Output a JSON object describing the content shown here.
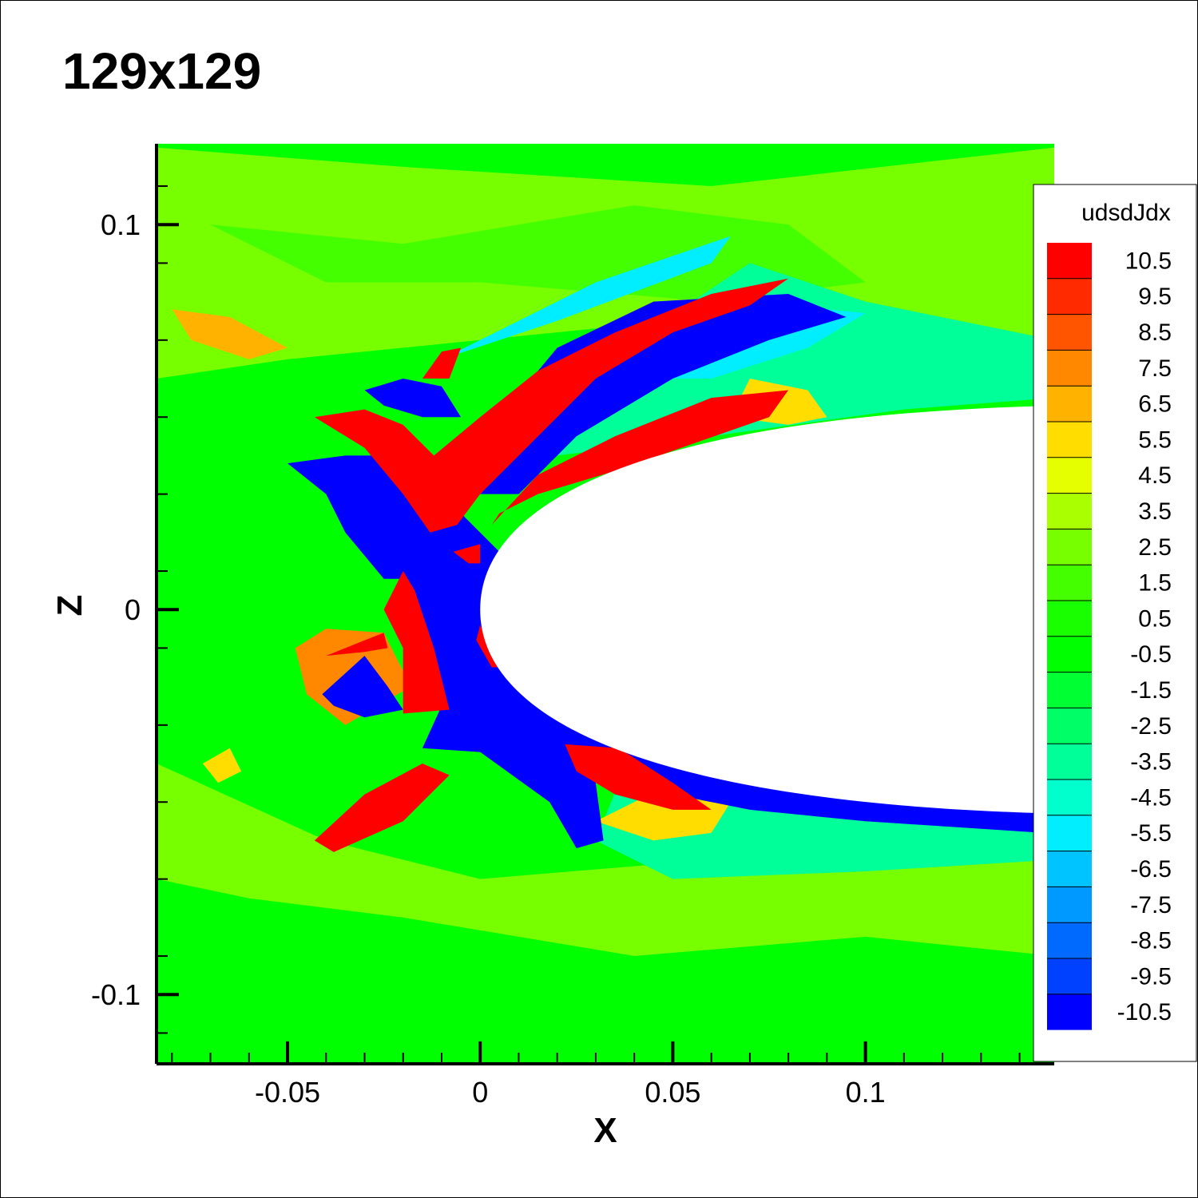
{
  "title": "129x129",
  "colors": {
    "background_field": "#00ff00",
    "body": "#ffffff",
    "axis": "#000000"
  },
  "chart_data": {
    "type": "heatmap",
    "title": "129x129",
    "xlabel": "X",
    "ylabel": "Z",
    "xlim": [
      -0.084,
      0.149
    ],
    "ylim": [
      -0.118,
      0.121
    ],
    "x_ticks": [
      {
        "value": -0.05,
        "label": "-0.05"
      },
      {
        "value": 0,
        "label": "0"
      },
      {
        "value": 0.05,
        "label": "0.05"
      },
      {
        "value": 0.1,
        "label": "0.1"
      }
    ],
    "y_ticks": [
      {
        "value": 0.1,
        "label": "0.1"
      },
      {
        "value": 0,
        "label": "0"
      },
      {
        "value": -0.1,
        "label": "-0.1"
      }
    ],
    "legend": {
      "title": "udsdJdx",
      "placement": "right",
      "levels": [
        {
          "label": "10.5",
          "color": "#ff0000"
        },
        {
          "label": "9.5",
          "color": "#ff2a00"
        },
        {
          "label": "8.5",
          "color": "#ff5500"
        },
        {
          "label": "7.5",
          "color": "#ff8800"
        },
        {
          "label": "6.5",
          "color": "#ffb300"
        },
        {
          "label": "5.5",
          "color": "#ffdd00"
        },
        {
          "label": "4.5",
          "color": "#e6ff00"
        },
        {
          "label": "3.5",
          "color": "#aaff00"
        },
        {
          "label": "2.5",
          "color": "#77ff00"
        },
        {
          "label": "1.5",
          "color": "#44ff00"
        },
        {
          "label": "0.5",
          "color": "#1aff00"
        },
        {
          "label": "-0.5",
          "color": "#00ff00"
        },
        {
          "label": "-1.5",
          "color": "#00ff33"
        },
        {
          "label": "-2.5",
          "color": "#00ff66"
        },
        {
          "label": "-3.5",
          "color": "#00ff99"
        },
        {
          "label": "-4.5",
          "color": "#00ffcc"
        },
        {
          "label": "-5.5",
          "color": "#00eeff"
        },
        {
          "label": "-6.5",
          "color": "#00c4ff"
        },
        {
          "label": "-7.5",
          "color": "#0099ff"
        },
        {
          "label": "-8.5",
          "color": "#006aff"
        },
        {
          "label": "-9.5",
          "color": "#0040ff"
        },
        {
          "label": "-10.5",
          "color": "#0000ff"
        }
      ]
    },
    "regions": [
      {
        "name": "upper-green-band",
        "value": 2.5,
        "points": [
          [
            -0.084,
            0.12
          ],
          [
            -0.02,
            0.115
          ],
          [
            0.06,
            0.11
          ],
          [
            0.149,
            0.12
          ],
          [
            0.149,
            0.065
          ],
          [
            0.1,
            0.07
          ],
          [
            0.05,
            0.075
          ],
          [
            0,
            0.07
          ],
          [
            -0.05,
            0.065
          ],
          [
            -0.084,
            0.06
          ]
        ]
      },
      {
        "name": "upper-light-green",
        "value": 1.5,
        "points": [
          [
            -0.07,
            0.1
          ],
          [
            -0.02,
            0.095
          ],
          [
            0.04,
            0.105
          ],
          [
            0.08,
            0.1
          ],
          [
            0.1,
            0.085
          ],
          [
            0.06,
            0.08
          ],
          [
            0.0,
            0.085
          ],
          [
            -0.04,
            0.085
          ]
        ]
      },
      {
        "name": "lower-light-green",
        "value": 2.5,
        "points": [
          [
            -0.084,
            -0.04
          ],
          [
            -0.04,
            -0.06
          ],
          [
            0.0,
            -0.07
          ],
          [
            0.06,
            -0.065
          ],
          [
            0.1,
            -0.055
          ],
          [
            0.149,
            -0.055
          ],
          [
            0.149,
            -0.09
          ],
          [
            0.1,
            -0.085
          ],
          [
            0.04,
            -0.09
          ],
          [
            -0.02,
            -0.08
          ],
          [
            -0.06,
            -0.075
          ],
          [
            -0.084,
            -0.07
          ]
        ]
      },
      {
        "name": "right-teal-band-upper",
        "value": -3.5,
        "points": [
          [
            0.07,
            0.09
          ],
          [
            0.1,
            0.08
          ],
          [
            0.149,
            0.07
          ],
          [
            0.149,
            0.055
          ],
          [
            0.11,
            0.052
          ],
          [
            0.06,
            0.045
          ],
          [
            0.02,
            0.04
          ],
          [
            0.04,
            0.07
          ]
        ]
      },
      {
        "name": "right-teal-band-lower",
        "value": -3.5,
        "points": [
          [
            0.04,
            -0.035
          ],
          [
            0.08,
            -0.045
          ],
          [
            0.149,
            -0.052
          ],
          [
            0.149,
            -0.065
          ],
          [
            0.1,
            -0.068
          ],
          [
            0.05,
            -0.07
          ],
          [
            0.03,
            -0.06
          ]
        ]
      },
      {
        "name": "upper-cyan-streak",
        "value": -5.5,
        "points": [
          [
            -0.01,
            0.065
          ],
          [
            0.03,
            0.085
          ],
          [
            0.065,
            0.097
          ],
          [
            0.06,
            0.09
          ],
          [
            0.02,
            0.075
          ]
        ]
      },
      {
        "name": "upper-right-cyan",
        "value": -5.5,
        "points": [
          [
            0.04,
            0.075
          ],
          [
            0.07,
            0.08
          ],
          [
            0.1,
            0.077
          ],
          [
            0.085,
            0.068
          ],
          [
            0.06,
            0.06
          ],
          [
            0.04,
            0.06
          ]
        ]
      },
      {
        "name": "left-yellow-upper",
        "value": 6.5,
        "points": [
          [
            -0.08,
            0.078
          ],
          [
            -0.065,
            0.076
          ],
          [
            -0.05,
            0.068
          ],
          [
            -0.06,
            0.065
          ],
          [
            -0.075,
            0.07
          ]
        ]
      },
      {
        "name": "left-orange-mid",
        "value": 7.5,
        "points": [
          [
            -0.048,
            -0.01
          ],
          [
            -0.04,
            -0.005
          ],
          [
            -0.025,
            -0.006
          ],
          [
            -0.018,
            -0.02
          ],
          [
            -0.035,
            -0.03
          ],
          [
            -0.045,
            -0.022
          ]
        ]
      },
      {
        "name": "lower-yellow-mid",
        "value": 5.5,
        "points": [
          [
            0.03,
            -0.055
          ],
          [
            0.045,
            -0.06
          ],
          [
            0.06,
            -0.058
          ],
          [
            0.065,
            -0.05
          ],
          [
            0.05,
            -0.045
          ]
        ]
      },
      {
        "name": "lower-left-yellow",
        "value": 5.5,
        "points": [
          [
            -0.072,
            -0.04
          ],
          [
            -0.065,
            -0.036
          ],
          [
            -0.062,
            -0.042
          ],
          [
            -0.068,
            -0.045
          ]
        ]
      },
      {
        "name": "upper-right-yellow",
        "value": 5.5,
        "points": [
          [
            0.07,
            0.06
          ],
          [
            0.085,
            0.057
          ],
          [
            0.09,
            0.05
          ],
          [
            0.08,
            0.048
          ],
          [
            0.065,
            0.05
          ]
        ]
      },
      {
        "name": "blue-arm-upper",
        "value": -10.5,
        "points": [
          [
            0.005,
            0.05
          ],
          [
            0.02,
            0.068
          ],
          [
            0.045,
            0.08
          ],
          [
            0.08,
            0.082
          ],
          [
            0.095,
            0.076
          ],
          [
            0.075,
            0.07
          ],
          [
            0.05,
            0.06
          ],
          [
            0.025,
            0.045
          ],
          [
            0.01,
            0.03
          ],
          [
            0.0,
            0.03
          ]
        ]
      },
      {
        "name": "blue-core",
        "value": -10.5,
        "points": [
          [
            -0.05,
            0.038
          ],
          [
            -0.035,
            0.04
          ],
          [
            -0.02,
            0.04
          ],
          [
            -0.01,
            0.03
          ],
          [
            0.0,
            0.02
          ],
          [
            0.005,
            0.015
          ],
          [
            0.0,
            0.0
          ],
          [
            0.006,
            -0.01
          ],
          [
            0.02,
            -0.022
          ],
          [
            0.04,
            -0.03
          ],
          [
            0.07,
            -0.04
          ],
          [
            0.1,
            -0.048
          ],
          [
            0.146,
            -0.053
          ],
          [
            0.146,
            -0.058
          ],
          [
            0.1,
            -0.055
          ],
          [
            0.07,
            -0.052
          ],
          [
            0.05,
            -0.048
          ],
          [
            0.036,
            -0.04
          ],
          [
            0.03,
            -0.045
          ],
          [
            0.032,
            -0.06
          ],
          [
            0.025,
            -0.062
          ],
          [
            0.018,
            -0.05
          ],
          [
            0.0,
            -0.037
          ],
          [
            -0.015,
            -0.036
          ],
          [
            -0.01,
            -0.025
          ],
          [
            -0.017,
            -0.01
          ],
          [
            -0.02,
            0.008
          ],
          [
            -0.025,
            0.008
          ],
          [
            -0.035,
            0.02
          ],
          [
            -0.04,
            0.03
          ]
        ]
      },
      {
        "name": "blue-left-pocket",
        "value": -10.5,
        "points": [
          [
            -0.041,
            -0.022
          ],
          [
            -0.03,
            -0.012
          ],
          [
            -0.024,
            -0.02
          ],
          [
            -0.02,
            -0.026
          ],
          [
            -0.03,
            -0.028
          ],
          [
            -0.038,
            -0.025
          ]
        ]
      },
      {
        "name": "blue-top-small",
        "value": -10.5,
        "points": [
          [
            -0.03,
            0.057
          ],
          [
            -0.02,
            0.06
          ],
          [
            -0.01,
            0.058
          ],
          [
            -0.005,
            0.05
          ],
          [
            -0.015,
            0.05
          ],
          [
            -0.025,
            0.053
          ]
        ]
      },
      {
        "name": "red-upper-arm",
        "value": 10.5,
        "points": [
          [
            -0.043,
            0.05
          ],
          [
            -0.03,
            0.052
          ],
          [
            -0.02,
            0.048
          ],
          [
            -0.012,
            0.04
          ],
          [
            0.0,
            0.05
          ],
          [
            0.015,
            0.062
          ],
          [
            0.035,
            0.072
          ],
          [
            0.06,
            0.082
          ],
          [
            0.08,
            0.086
          ],
          [
            0.07,
            0.079
          ],
          [
            0.05,
            0.072
          ],
          [
            0.03,
            0.06
          ],
          [
            0.01,
            0.04
          ],
          [
            0.0,
            0.03
          ],
          [
            -0.006,
            0.022
          ],
          [
            -0.013,
            0.02
          ],
          [
            -0.02,
            0.03
          ],
          [
            -0.03,
            0.042
          ]
        ]
      },
      {
        "name": "red-mid-arm",
        "value": 10.5,
        "points": [
          [
            0.003,
            0.022
          ],
          [
            0.015,
            0.035
          ],
          [
            0.035,
            0.045
          ],
          [
            0.06,
            0.055
          ],
          [
            0.08,
            0.057
          ],
          [
            0.075,
            0.05
          ],
          [
            0.055,
            0.043
          ],
          [
            0.035,
            0.036
          ],
          [
            0.015,
            0.03
          ],
          [
            0.005,
            0.025
          ]
        ]
      },
      {
        "name": "red-left-mid",
        "value": 10.5,
        "points": [
          [
            -0.02,
            0.01
          ],
          [
            -0.017,
            0.005
          ],
          [
            -0.012,
            -0.01
          ],
          [
            -0.008,
            -0.026
          ],
          [
            -0.02,
            -0.027
          ],
          [
            -0.02,
            -0.01
          ],
          [
            -0.025,
            0.0
          ]
        ]
      },
      {
        "name": "red-left-strip",
        "value": 10.5,
        "points": [
          [
            -0.04,
            -0.012
          ],
          [
            -0.03,
            -0.008
          ],
          [
            -0.025,
            -0.006
          ],
          [
            -0.024,
            -0.01
          ],
          [
            -0.03,
            -0.011
          ]
        ]
      },
      {
        "name": "red-lower-left",
        "value": 10.5,
        "points": [
          [
            -0.043,
            -0.06
          ],
          [
            -0.03,
            -0.048
          ],
          [
            -0.015,
            -0.04
          ],
          [
            -0.008,
            -0.043
          ],
          [
            -0.02,
            -0.055
          ],
          [
            -0.038,
            -0.063
          ]
        ]
      },
      {
        "name": "red-lower-right",
        "value": 10.5,
        "points": [
          [
            0.022,
            -0.035
          ],
          [
            0.036,
            -0.036
          ],
          [
            0.05,
            -0.045
          ],
          [
            0.06,
            -0.052
          ],
          [
            0.05,
            -0.052
          ],
          [
            0.035,
            -0.048
          ],
          [
            0.025,
            -0.042
          ]
        ]
      },
      {
        "name": "red-top-small",
        "value": 10.5,
        "points": [
          [
            -0.015,
            0.06
          ],
          [
            -0.01,
            0.067
          ],
          [
            -0.005,
            0.068
          ],
          [
            -0.008,
            0.06
          ]
        ]
      },
      {
        "name": "red-near-nose",
        "value": 10.5,
        "points": [
          [
            -0.007,
            0.015
          ],
          [
            0.0,
            0.017
          ],
          [
            0.0,
            0.012
          ],
          [
            -0.003,
            0.012
          ]
        ]
      },
      {
        "name": "red-nose-lower",
        "value": 10.5,
        "points": [
          [
            0.0,
            -0.004
          ],
          [
            0.004,
            -0.012
          ],
          [
            0.007,
            -0.015
          ],
          [
            0.003,
            -0.015
          ],
          [
            -0.001,
            -0.008
          ]
        ]
      }
    ],
    "body": {
      "name": "airfoil-body",
      "leading_edge": [
        0.0,
        0.0
      ],
      "upper_trailing": [
        0.149,
        0.053
      ],
      "lower_trailing": [
        0.149,
        -0.053
      ]
    }
  }
}
